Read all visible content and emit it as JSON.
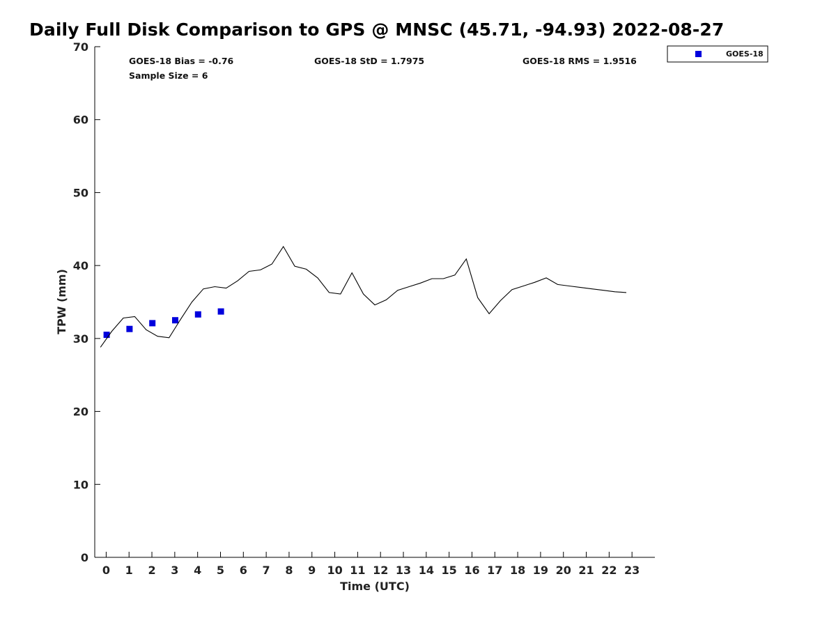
{
  "page_title": "Daily Full Disk Comparison to GPS @ MNSC (45.71, -94.93) 2022-08-27",
  "stats": {
    "bias": "GOES-18 Bias = -0.76",
    "sample_size": "Sample Size = 6",
    "std": "GOES-18 StD = 1.7975",
    "rms": "GOES-18 RMS = 1.9516"
  },
  "legend": {
    "label": "GOES-18"
  },
  "chart_data": {
    "type": "scatter",
    "title": "Daily Full Disk Comparison to GPS @ MNSC (45.71, -94.93) 2022-08-27",
    "xlabel": "Time (UTC)",
    "ylabel": "TPW (mm)",
    "xlim": [
      -0.5,
      24
    ],
    "ylim": [
      0,
      70
    ],
    "x_ticks": [
      "0",
      "1",
      "2",
      "3",
      "4",
      "5",
      "6",
      "7",
      "8",
      "9",
      "10",
      "11",
      "12",
      "13",
      "14",
      "15",
      "16",
      "17",
      "18",
      "19",
      "20",
      "21",
      "22",
      "23"
    ],
    "y_ticks": [
      "0",
      "10",
      "20",
      "30",
      "40",
      "50",
      "60",
      "70"
    ],
    "legend_position": "outside top-right",
    "grid": false,
    "series": [
      {
        "name": "GOES-18",
        "style": "marker",
        "marker": "square",
        "color": "#0000dd",
        "x": [
          0.02,
          1.02,
          2.02,
          3.02,
          4.02,
          5.02
        ],
        "y": [
          30.5,
          31.3,
          32.1,
          32.5,
          33.3,
          33.7
        ]
      },
      {
        "style": "line",
        "color": "#000000",
        "x": [
          -0.25,
          0.25,
          0.75,
          1.25,
          1.75,
          2.25,
          2.75,
          3.25,
          3.75,
          4.25,
          4.75,
          5.25,
          5.75,
          6.25,
          6.75,
          7.25,
          7.75,
          8.25,
          8.75,
          9.25,
          9.75,
          10.25,
          10.75,
          11.25,
          11.75,
          12.25,
          12.75,
          13.25,
          13.75,
          14.25,
          14.75,
          15.25,
          15.75,
          16.25,
          16.75,
          17.25,
          17.75,
          18.25,
          18.75,
          19.25,
          19.75,
          20.25,
          20.75,
          21.25,
          21.75,
          22.25,
          22.75
        ],
        "y": [
          28.8,
          31.0,
          32.8,
          33.0,
          31.2,
          30.3,
          30.1,
          32.6,
          35.0,
          36.8,
          37.1,
          36.9,
          37.9,
          39.2,
          39.4,
          40.2,
          42.6,
          39.9,
          39.5,
          38.3,
          36.3,
          36.1,
          39.0,
          36.1,
          34.6,
          35.3,
          36.6,
          37.1,
          37.6,
          38.2,
          38.2,
          38.7,
          40.9,
          35.6,
          33.4,
          35.2,
          36.7,
          37.2,
          37.7,
          38.3,
          37.4,
          37.2,
          37.0,
          36.8,
          36.6,
          36.4,
          36.3
        ]
      }
    ]
  }
}
